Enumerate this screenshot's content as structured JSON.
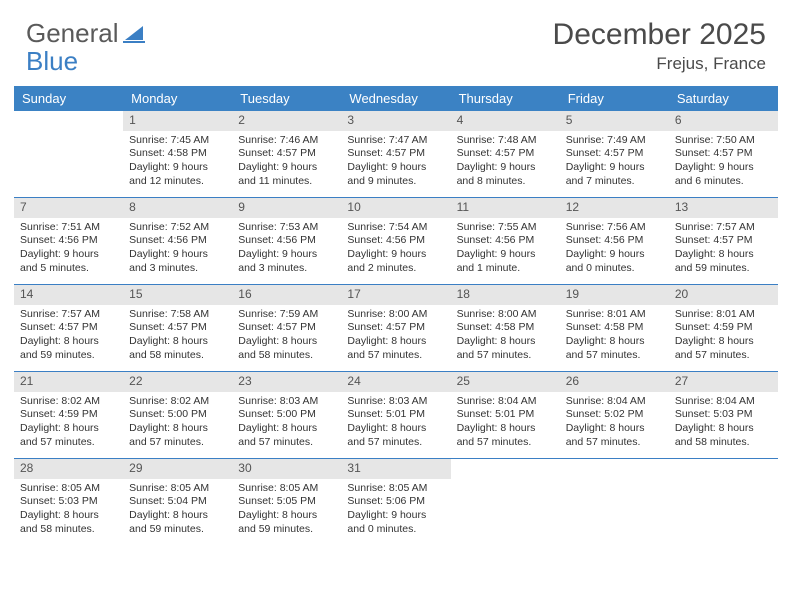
{
  "brand": {
    "part1": "General",
    "part2": "Blue"
  },
  "title": {
    "month": "December 2025",
    "location": "Frejus, France"
  },
  "colors": {
    "header_bg": "#3b82c4",
    "row_border": "#3b7fc4",
    "daynum_bg": "#e6e6e6",
    "text": "#333333",
    "title_text": "#4a4a4a"
  },
  "weekdays": [
    "Sunday",
    "Monday",
    "Tuesday",
    "Wednesday",
    "Thursday",
    "Friday",
    "Saturday"
  ],
  "weeks": [
    [
      {
        "n": "",
        "sr": "",
        "ss": "",
        "dl": ""
      },
      {
        "n": "1",
        "sr": "Sunrise: 7:45 AM",
        "ss": "Sunset: 4:58 PM",
        "dl": "Daylight: 9 hours and 12 minutes."
      },
      {
        "n": "2",
        "sr": "Sunrise: 7:46 AM",
        "ss": "Sunset: 4:57 PM",
        "dl": "Daylight: 9 hours and 11 minutes."
      },
      {
        "n": "3",
        "sr": "Sunrise: 7:47 AM",
        "ss": "Sunset: 4:57 PM",
        "dl": "Daylight: 9 hours and 9 minutes."
      },
      {
        "n": "4",
        "sr": "Sunrise: 7:48 AM",
        "ss": "Sunset: 4:57 PM",
        "dl": "Daylight: 9 hours and 8 minutes."
      },
      {
        "n": "5",
        "sr": "Sunrise: 7:49 AM",
        "ss": "Sunset: 4:57 PM",
        "dl": "Daylight: 9 hours and 7 minutes."
      },
      {
        "n": "6",
        "sr": "Sunrise: 7:50 AM",
        "ss": "Sunset: 4:57 PM",
        "dl": "Daylight: 9 hours and 6 minutes."
      }
    ],
    [
      {
        "n": "7",
        "sr": "Sunrise: 7:51 AM",
        "ss": "Sunset: 4:56 PM",
        "dl": "Daylight: 9 hours and 5 minutes."
      },
      {
        "n": "8",
        "sr": "Sunrise: 7:52 AM",
        "ss": "Sunset: 4:56 PM",
        "dl": "Daylight: 9 hours and 3 minutes."
      },
      {
        "n": "9",
        "sr": "Sunrise: 7:53 AM",
        "ss": "Sunset: 4:56 PM",
        "dl": "Daylight: 9 hours and 3 minutes."
      },
      {
        "n": "10",
        "sr": "Sunrise: 7:54 AM",
        "ss": "Sunset: 4:56 PM",
        "dl": "Daylight: 9 hours and 2 minutes."
      },
      {
        "n": "11",
        "sr": "Sunrise: 7:55 AM",
        "ss": "Sunset: 4:56 PM",
        "dl": "Daylight: 9 hours and 1 minute."
      },
      {
        "n": "12",
        "sr": "Sunrise: 7:56 AM",
        "ss": "Sunset: 4:56 PM",
        "dl": "Daylight: 9 hours and 0 minutes."
      },
      {
        "n": "13",
        "sr": "Sunrise: 7:57 AM",
        "ss": "Sunset: 4:57 PM",
        "dl": "Daylight: 8 hours and 59 minutes."
      }
    ],
    [
      {
        "n": "14",
        "sr": "Sunrise: 7:57 AM",
        "ss": "Sunset: 4:57 PM",
        "dl": "Daylight: 8 hours and 59 minutes."
      },
      {
        "n": "15",
        "sr": "Sunrise: 7:58 AM",
        "ss": "Sunset: 4:57 PM",
        "dl": "Daylight: 8 hours and 58 minutes."
      },
      {
        "n": "16",
        "sr": "Sunrise: 7:59 AM",
        "ss": "Sunset: 4:57 PM",
        "dl": "Daylight: 8 hours and 58 minutes."
      },
      {
        "n": "17",
        "sr": "Sunrise: 8:00 AM",
        "ss": "Sunset: 4:57 PM",
        "dl": "Daylight: 8 hours and 57 minutes."
      },
      {
        "n": "18",
        "sr": "Sunrise: 8:00 AM",
        "ss": "Sunset: 4:58 PM",
        "dl": "Daylight: 8 hours and 57 minutes."
      },
      {
        "n": "19",
        "sr": "Sunrise: 8:01 AM",
        "ss": "Sunset: 4:58 PM",
        "dl": "Daylight: 8 hours and 57 minutes."
      },
      {
        "n": "20",
        "sr": "Sunrise: 8:01 AM",
        "ss": "Sunset: 4:59 PM",
        "dl": "Daylight: 8 hours and 57 minutes."
      }
    ],
    [
      {
        "n": "21",
        "sr": "Sunrise: 8:02 AM",
        "ss": "Sunset: 4:59 PM",
        "dl": "Daylight: 8 hours and 57 minutes."
      },
      {
        "n": "22",
        "sr": "Sunrise: 8:02 AM",
        "ss": "Sunset: 5:00 PM",
        "dl": "Daylight: 8 hours and 57 minutes."
      },
      {
        "n": "23",
        "sr": "Sunrise: 8:03 AM",
        "ss": "Sunset: 5:00 PM",
        "dl": "Daylight: 8 hours and 57 minutes."
      },
      {
        "n": "24",
        "sr": "Sunrise: 8:03 AM",
        "ss": "Sunset: 5:01 PM",
        "dl": "Daylight: 8 hours and 57 minutes."
      },
      {
        "n": "25",
        "sr": "Sunrise: 8:04 AM",
        "ss": "Sunset: 5:01 PM",
        "dl": "Daylight: 8 hours and 57 minutes."
      },
      {
        "n": "26",
        "sr": "Sunrise: 8:04 AM",
        "ss": "Sunset: 5:02 PM",
        "dl": "Daylight: 8 hours and 57 minutes."
      },
      {
        "n": "27",
        "sr": "Sunrise: 8:04 AM",
        "ss": "Sunset: 5:03 PM",
        "dl": "Daylight: 8 hours and 58 minutes."
      }
    ],
    [
      {
        "n": "28",
        "sr": "Sunrise: 8:05 AM",
        "ss": "Sunset: 5:03 PM",
        "dl": "Daylight: 8 hours and 58 minutes."
      },
      {
        "n": "29",
        "sr": "Sunrise: 8:05 AM",
        "ss": "Sunset: 5:04 PM",
        "dl": "Daylight: 8 hours and 59 minutes."
      },
      {
        "n": "30",
        "sr": "Sunrise: 8:05 AM",
        "ss": "Sunset: 5:05 PM",
        "dl": "Daylight: 8 hours and 59 minutes."
      },
      {
        "n": "31",
        "sr": "Sunrise: 8:05 AM",
        "ss": "Sunset: 5:06 PM",
        "dl": "Daylight: 9 hours and 0 minutes."
      },
      {
        "n": "",
        "sr": "",
        "ss": "",
        "dl": ""
      },
      {
        "n": "",
        "sr": "",
        "ss": "",
        "dl": ""
      },
      {
        "n": "",
        "sr": "",
        "ss": "",
        "dl": ""
      }
    ]
  ]
}
